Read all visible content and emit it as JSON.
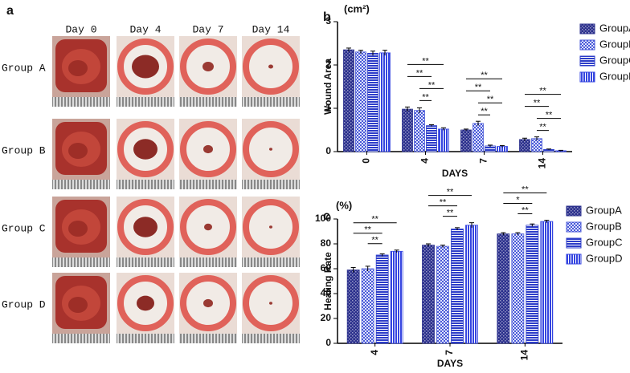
{
  "panel_a": {
    "label": "a",
    "columns": [
      "Day 0",
      "Day 4",
      "Day 7",
      "Day 14"
    ],
    "rows": [
      "Group A",
      "Group B",
      "Group C",
      "Group D"
    ]
  },
  "chart_data": [
    {
      "type": "bar",
      "panel": "b",
      "unit": "(cm²)",
      "ylabel": "Wound Area",
      "xlabel": "DAYS",
      "categories": [
        "0",
        "4",
        "7",
        "14"
      ],
      "ylim": [
        0,
        3
      ],
      "yticks": [
        0,
        1,
        2,
        3
      ],
      "grid": false,
      "legend": "right",
      "series": [
        {
          "name": "GroupA",
          "color": "#2a2f8c",
          "pattern": "checker",
          "values": [
            2.35,
            0.98,
            0.5,
            0.28
          ],
          "errors": [
            0.04,
            0.05,
            0.02,
            0.03
          ]
        },
        {
          "name": "GroupB",
          "color": "#4a5ad8",
          "pattern": "checker-open",
          "values": [
            2.3,
            0.95,
            0.65,
            0.3
          ],
          "errors": [
            0.04,
            0.06,
            0.05,
            0.04
          ]
        },
        {
          "name": "GroupC",
          "color": "#2c3cc8",
          "pattern": "hstripe",
          "values": [
            2.27,
            0.6,
            0.13,
            0.05
          ],
          "errors": [
            0.05,
            0.02,
            0.02,
            0.01
          ]
        },
        {
          "name": "GroupD",
          "color": "#3444e0",
          "pattern": "vstripe",
          "values": [
            2.28,
            0.52,
            0.12,
            0.02
          ],
          "errors": [
            0.06,
            0.03,
            0.02,
            0.01
          ]
        }
      ],
      "annotations": [
        {
          "category": "4",
          "from": "GroupA",
          "to": "GroupD",
          "text": "**"
        },
        {
          "category": "4",
          "from": "GroupA",
          "to": "GroupC",
          "text": "**"
        },
        {
          "category": "4",
          "from": "GroupB",
          "to": "GroupD",
          "text": "**"
        },
        {
          "category": "4",
          "from": "GroupB",
          "to": "GroupC",
          "text": "**"
        },
        {
          "category": "7",
          "from": "GroupA",
          "to": "GroupD",
          "text": "**"
        },
        {
          "category": "7",
          "from": "GroupA",
          "to": "GroupC",
          "text": "**"
        },
        {
          "category": "7",
          "from": "GroupB",
          "to": "GroupD",
          "text": "**"
        },
        {
          "category": "7",
          "from": "GroupB",
          "to": "GroupC",
          "text": "**"
        },
        {
          "category": "14",
          "from": "GroupA",
          "to": "GroupD",
          "text": "**"
        },
        {
          "category": "14",
          "from": "GroupA",
          "to": "GroupC",
          "text": "**"
        },
        {
          "category": "14",
          "from": "GroupB",
          "to": "GroupD",
          "text": "**"
        },
        {
          "category": "14",
          "from": "GroupB",
          "to": "GroupC",
          "text": "**"
        }
      ]
    },
    {
      "type": "bar",
      "panel": "c",
      "unit": "(%)",
      "ylabel": "Healing Rate",
      "xlabel": "DAYS",
      "categories": [
        "4",
        "7",
        "14"
      ],
      "ylim": [
        0,
        100
      ],
      "yticks": [
        0,
        20,
        40,
        60,
        80,
        100
      ],
      "grid": false,
      "legend": "right",
      "series": [
        {
          "name": "GroupA",
          "color": "#2a2f8c",
          "pattern": "checker",
          "values": [
            59,
            79,
            88
          ],
          "errors": [
            2,
            1,
            1
          ]
        },
        {
          "name": "GroupB",
          "color": "#4a5ad8",
          "pattern": "checker-open",
          "values": [
            60,
            78,
            88
          ],
          "errors": [
            2,
            1,
            1
          ]
        },
        {
          "name": "GroupC",
          "color": "#2c3cc8",
          "pattern": "hstripe",
          "values": [
            71,
            92,
            95
          ],
          "errors": [
            1,
            1,
            1
          ]
        },
        {
          "name": "GroupD",
          "color": "#3444e0",
          "pattern": "vstripe",
          "values": [
            74,
            95,
            98
          ],
          "errors": [
            1,
            2,
            1
          ]
        }
      ],
      "annotations": [
        {
          "category": "4",
          "from": "GroupA",
          "to": "GroupD",
          "text": "**"
        },
        {
          "category": "4",
          "from": "GroupA",
          "to": "GroupC",
          "text": "**"
        },
        {
          "category": "4",
          "from": "GroupB",
          "to": "GroupC",
          "text": "**"
        },
        {
          "category": "7",
          "from": "GroupA",
          "to": "GroupD",
          "text": "**"
        },
        {
          "category": "7",
          "from": "GroupA",
          "to": "GroupC",
          "text": "**"
        },
        {
          "category": "7",
          "from": "GroupB",
          "to": "GroupC",
          "text": "**"
        },
        {
          "category": "14",
          "from": "GroupA",
          "to": "GroupD",
          "text": "**"
        },
        {
          "category": "14",
          "from": "GroupA",
          "to": "GroupC",
          "text": "*"
        },
        {
          "category": "14",
          "from": "GroupB",
          "to": "GroupC",
          "text": "**"
        }
      ]
    }
  ]
}
